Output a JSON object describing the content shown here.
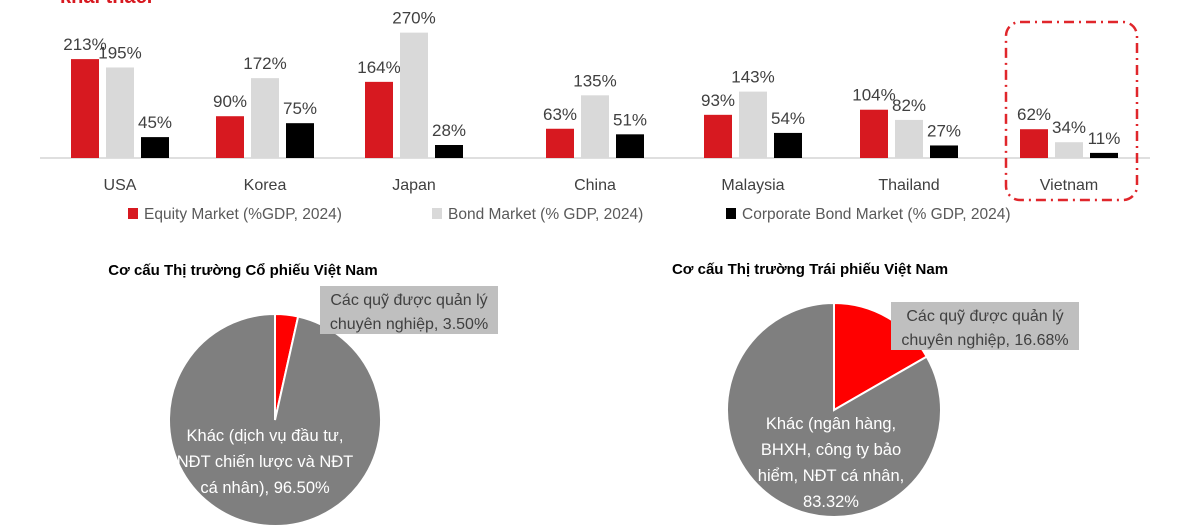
{
  "header": {
    "cut_title": "khai thác."
  },
  "colors": {
    "equity": "#d71920",
    "bond": "#d9d9d9",
    "corporate": "#000000",
    "pie_other": "#7f7f7f",
    "pie_funds": "#ff0000",
    "highlight": "#e0262b",
    "label_box": "#bfbfbf"
  },
  "chart_data": [
    {
      "type": "bar",
      "categories": [
        "USA",
        "Korea",
        "Japan",
        "China",
        "Malaysia",
        "Thailand",
        "Vietnam"
      ],
      "series": [
        {
          "name": "Equity Market  (%GDP, 2024)",
          "values": [
            213,
            90,
            164,
            63,
            93,
            104,
            62
          ]
        },
        {
          "name": "Bond Market (% GDP, 2024)",
          "values": [
            195,
            172,
            270,
            135,
            143,
            82,
            34
          ]
        },
        {
          "name": "Corporate Bond Market (% GDP, 2024)",
          "values": [
            45,
            75,
            28,
            51,
            54,
            27,
            11
          ]
        }
      ],
      "value_labels": [
        [
          "213%",
          "90%",
          "164%",
          "63%",
          "93%",
          "104%",
          "62%"
        ],
        [
          "195%",
          "172%",
          "270%",
          "135%",
          "143%",
          "82%",
          "34%"
        ],
        [
          "45%",
          "75%",
          "28%",
          "51%",
          "54%",
          "27%",
          "11%"
        ]
      ],
      "ylim": [
        0,
        280
      ],
      "grid": false,
      "legend": "bottom",
      "highlighted_category": "Vietnam"
    },
    {
      "type": "pie",
      "title": "Cơ cấu Thị trường Cổ phiếu Việt Nam",
      "slices": [
        {
          "label_lines": [
            "Các quỹ được quản lý",
            "chuyên nghiệp, 3.50%"
          ],
          "value": 3.5
        },
        {
          "label_lines": [
            "Khác (dịch vụ đầu tư,",
            "NĐT chiến lược và NĐT",
            "cá nhân), 96.50%"
          ],
          "value": 96.5
        }
      ]
    },
    {
      "type": "pie",
      "title": "Cơ cấu Thị trường Trái phiếu Việt Nam",
      "slices": [
        {
          "label_lines": [
            "Các quỹ được quản lý",
            "chuyên nghiệp, 16.68%"
          ],
          "value": 16.68
        },
        {
          "label_lines": [
            "Khác (ngân hàng,",
            "BHXH, công ty bảo",
            "hiểm, NĐT cá nhân,",
            "83.32%"
          ],
          "value": 83.32
        }
      ]
    }
  ]
}
